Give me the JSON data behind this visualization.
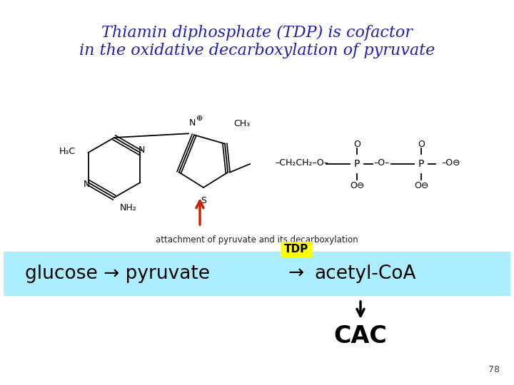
{
  "title_line1": "Thiamin diphosphate (TDP) is cofactor",
  "title_line2": "in the oxidative decarboxylation of pyruvate",
  "title_color": "#2020aa",
  "title_fontsize": 16,
  "subtitle_text": "attachment of pyruvate and its decarboxylation",
  "subtitle_fontsize": 8.5,
  "subtitle_color": "#222222",
  "reaction_bg_color": "#aaeeff",
  "reaction_fontsize": 19,
  "reaction_color": "#000000",
  "tdp_label": "TDP",
  "tdp_bg": "#ffff00",
  "tdp_fontsize": 11,
  "tdp_color": "#000000",
  "cac_text": "CAC",
  "cac_fontsize": 24,
  "cac_color": "#000000",
  "page_num": "78",
  "page_num_fontsize": 9,
  "page_num_color": "#444444",
  "background_color": "#ffffff"
}
